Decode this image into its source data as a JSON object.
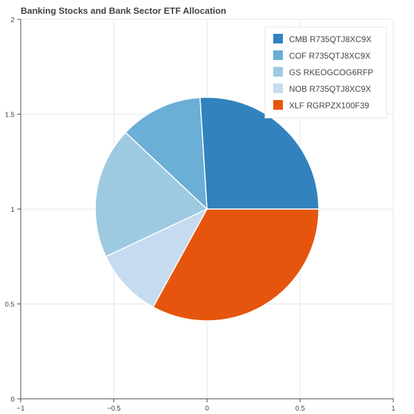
{
  "chart_data": {
    "type": "pie",
    "title": "Banking Stocks and Bank Sector ETF Allocation",
    "xlim": [
      -1,
      1
    ],
    "ylim": [
      0,
      2
    ],
    "x_ticks": [
      "−1",
      "−0.5",
      "0",
      "0.5",
      "1"
    ],
    "y_ticks": [
      "0",
      "0.5",
      "1",
      "1.5",
      "2"
    ],
    "grid": true,
    "legend_position": "top-right",
    "center": [
      0,
      1
    ],
    "radius": 0.6,
    "slices": [
      {
        "label": "CMB R735QTJ8XC9X",
        "value": 26,
        "color": "#3182bd"
      },
      {
        "label": "COF R735QTJ8XC9X",
        "value": 12,
        "color": "#6baed6"
      },
      {
        "label": "GS RKEOGCOG6RFP",
        "value": 19,
        "color": "#9ecae1"
      },
      {
        "label": "NOB R735QTJ8XC9X",
        "value": 10,
        "color": "#c6dbef"
      },
      {
        "label": "XLF RGRPZX100F39",
        "value": 33,
        "color": "#e6550d"
      }
    ]
  }
}
